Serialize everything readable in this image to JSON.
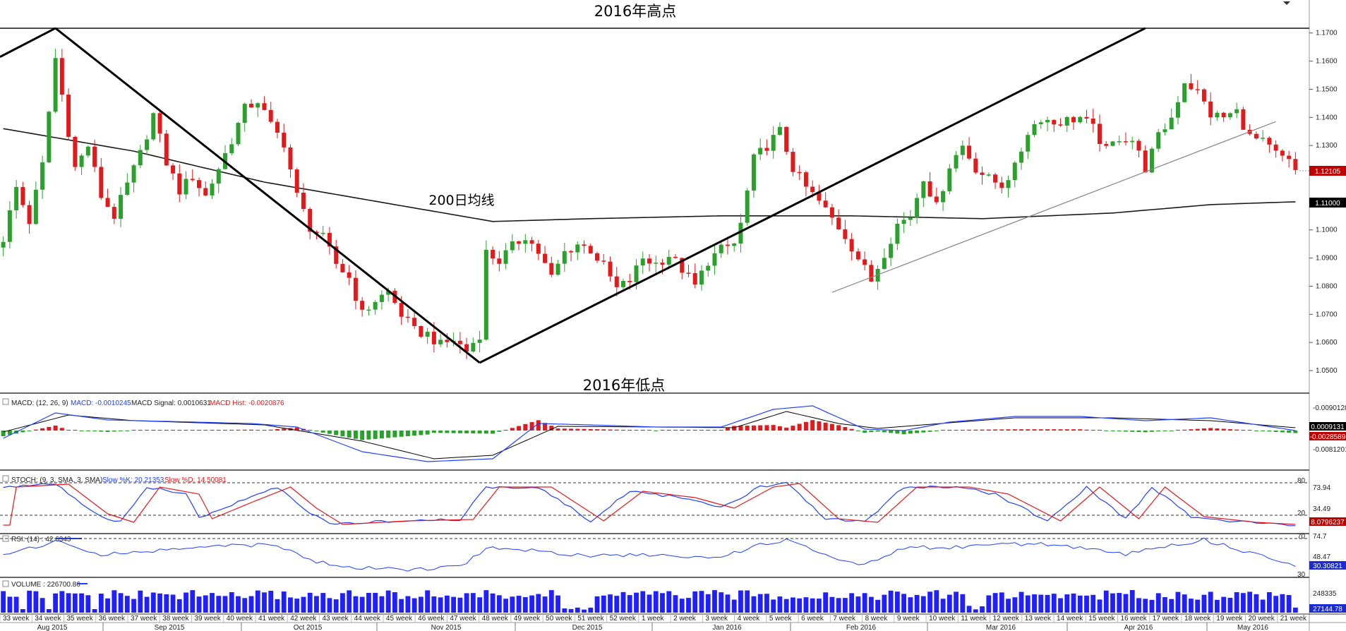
{
  "chart_data": {
    "type": "candlestick",
    "instrument_note": "weekly candles (EUR/USD style)",
    "annotations": {
      "high_label": "2016年高点",
      "low_label": "2016年低点",
      "ma_label": "200日均线"
    },
    "price_axis": {
      "ticks": [
        "1.1700",
        "1.1600",
        "1.1500",
        "1.1400",
        "1.1300",
        "1.1200",
        "1.1100",
        "1.1000",
        "1.0900",
        "1.0800",
        "1.0700",
        "1.0600",
        "1.0500"
      ],
      "tick_values": [
        1.17,
        1.16,
        1.15,
        1.14,
        1.13,
        1.12,
        1.11,
        1.1,
        1.09,
        1.08,
        1.07,
        1.06,
        1.05
      ],
      "ylim": [
        1.047,
        1.1747
      ],
      "last_price_tag": "1.12105",
      "last_price": 1.12105,
      "ma_tag": "1.11000",
      "ma_value": 1.11
    },
    "close_path": [
      [
        0,
        1.097
      ],
      [
        2,
        1.115
      ],
      [
        4,
        1.103
      ],
      [
        6,
        1.123
      ],
      [
        8,
        1.161
      ],
      [
        9,
        1.148
      ],
      [
        11,
        1.122
      ],
      [
        13,
        1.13
      ],
      [
        15,
        1.112
      ],
      [
        17,
        1.105
      ],
      [
        19,
        1.116
      ],
      [
        21,
        1.127
      ],
      [
        23,
        1.141
      ],
      [
        25,
        1.124
      ],
      [
        27,
        1.114
      ],
      [
        29,
        1.119
      ],
      [
        31,
        1.112
      ],
      [
        33,
        1.122
      ],
      [
        35,
        1.132
      ],
      [
        37,
        1.143
      ],
      [
        39,
        1.146
      ],
      [
        41,
        1.137
      ],
      [
        43,
        1.131
      ],
      [
        45,
        1.112
      ],
      [
        47,
        1.101
      ],
      [
        49,
        1.097
      ],
      [
        51,
        1.088
      ],
      [
        53,
        1.083
      ],
      [
        55,
        1.07
      ],
      [
        57,
        1.075
      ],
      [
        59,
        1.078
      ],
      [
        61,
        1.07
      ],
      [
        63,
        1.064
      ],
      [
        65,
        1.063
      ],
      [
        67,
        1.059
      ],
      [
        69,
        1.061
      ],
      [
        71,
        1.057
      ],
      [
        73,
        1.063
      ],
      [
        74,
        1.092
      ],
      [
        76,
        1.089
      ],
      [
        78,
        1.094
      ],
      [
        80,
        1.098
      ],
      [
        82,
        1.092
      ],
      [
        84,
        1.083
      ],
      [
        86,
        1.092
      ],
      [
        88,
        1.095
      ],
      [
        90,
        1.093
      ],
      [
        92,
        1.087
      ],
      [
        94,
        1.079
      ],
      [
        96,
        1.082
      ],
      [
        98,
        1.09
      ],
      [
        100,
        1.088
      ],
      [
        102,
        1.091
      ],
      [
        104,
        1.086
      ],
      [
        106,
        1.08
      ],
      [
        108,
        1.089
      ],
      [
        110,
        1.093
      ],
      [
        112,
        1.095
      ],
      [
        113,
        1.102
      ],
      [
        115,
        1.125
      ],
      [
        117,
        1.13
      ],
      [
        119,
        1.135
      ],
      [
        121,
        1.122
      ],
      [
        123,
        1.115
      ],
      [
        125,
        1.11
      ],
      [
        127,
        1.104
      ],
      [
        129,
        1.098
      ],
      [
        131,
        1.09
      ],
      [
        133,
        1.082
      ],
      [
        135,
        1.092
      ],
      [
        137,
        1.102
      ],
      [
        139,
        1.105
      ],
      [
        141,
        1.119
      ],
      [
        143,
        1.108
      ],
      [
        145,
        1.123
      ],
      [
        147,
        1.13
      ],
      [
        149,
        1.122
      ],
      [
        151,
        1.118
      ],
      [
        153,
        1.116
      ],
      [
        155,
        1.122
      ],
      [
        157,
        1.135
      ],
      [
        159,
        1.14
      ],
      [
        161,
        1.138
      ],
      [
        163,
        1.139
      ],
      [
        165,
        1.14
      ],
      [
        167,
        1.136
      ],
      [
        169,
        1.128
      ],
      [
        171,
        1.133
      ],
      [
        173,
        1.132
      ],
      [
        175,
        1.122
      ],
      [
        177,
        1.133
      ],
      [
        179,
        1.14
      ],
      [
        181,
        1.153
      ],
      [
        183,
        1.149
      ],
      [
        185,
        1.141
      ],
      [
        187,
        1.14
      ],
      [
        189,
        1.142
      ],
      [
        191,
        1.133
      ],
      [
        193,
        1.131
      ],
      [
        195,
        1.127
      ],
      [
        197,
        1.124
      ],
      [
        198,
        1.121
      ]
    ],
    "macd": {
      "title": "MACD: (12, 26, 9)",
      "macd_label": "MACD: -0.0010245",
      "signal_label": "MACD Signal: 0.0010631",
      "hist_label": "MACD Hist: -0.0020876",
      "ticks": [
        "-0.0090128",
        "0.0009131",
        "-0.0028589",
        "-0.0081201"
      ]
    },
    "stoch": {
      "title": "STOCH: (9, 3, SMA, 3, SMA)",
      "k_label": "Slow %K: 20.21353",
      "d_label": "Slow %D: 14.50081",
      "ticks": [
        "80",
        "73.94",
        "20",
        "34.49",
        "8.0796237"
      ]
    },
    "rsi": {
      "title": "RSI: (14) : 42.6343",
      "ticks": [
        "70",
        "74.7",
        "48.47",
        "30.30821",
        "30"
      ]
    },
    "volume": {
      "title": "VOLUME : 226700.86",
      "ticks": [
        "248335",
        "27144.78"
      ]
    },
    "week_labels": [
      "33 week",
      "34 week",
      "35 week",
      "36 week",
      "37 week",
      "38 week",
      "39 week",
      "40 week",
      "41 week",
      "42 week",
      "43 week",
      "44 week",
      "45 week",
      "46 week",
      "47 week",
      "48 week",
      "49 week",
      "50 week",
      "51 week",
      "52 week",
      "1 week",
      "2 week",
      "3 week",
      "4 week",
      "5 week",
      "6 week",
      "7 week",
      "8 week",
      "9 week",
      "10 week",
      "11 week",
      "12 week",
      "13 week",
      "14 week",
      "15 week",
      "16 week",
      "17 week",
      "18 week",
      "19 week",
      "20 week",
      "21 week"
    ],
    "month_labels": [
      "Aug 2015",
      "Sep 2015",
      "Oct 2015",
      "Nov 2015",
      "Dec 2015",
      "Jan 2016",
      "Feb 2016",
      "Mar 2016",
      "Apr 2016",
      "May 2016"
    ],
    "colors": {
      "up": "#2ca02c",
      "down": "#e31a1c",
      "trend": "#000000",
      "ma": "#1a1a1a",
      "macd": "#1f3fff",
      "signal": "#000000",
      "stoch_k": "#1f3fff",
      "stoch_d": "#e31a1c",
      "rsi": "#1f3fff",
      "volume": "#1f1fff",
      "tag_red": "#c00000",
      "tag_black": "#000000",
      "tag_blue": "#1a2bd6"
    }
  }
}
